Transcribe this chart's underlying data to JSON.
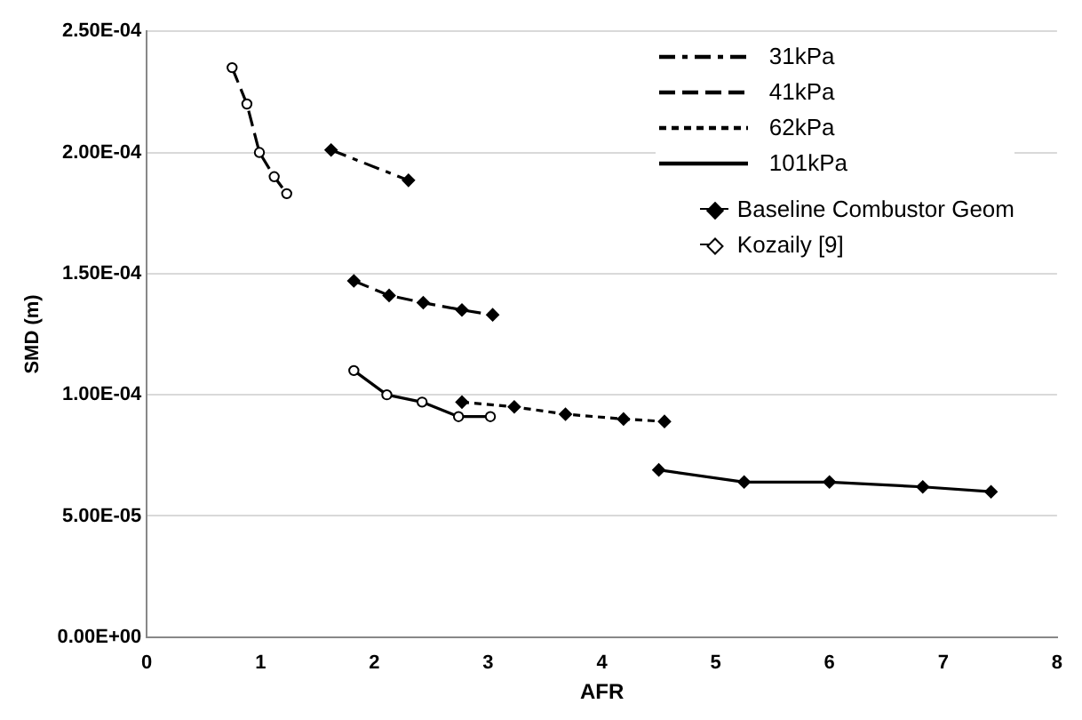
{
  "chart_data": {
    "type": "line",
    "xlabel": "AFR",
    "ylabel": "SMD (m)",
    "xlim": [
      0,
      8
    ],
    "xticks": [
      0,
      1,
      2,
      3,
      4,
      5,
      6,
      7,
      8
    ],
    "ylim": [
      0,
      0.00025
    ],
    "yticks": [
      {
        "value": 0,
        "label": "0.00E+00"
      },
      {
        "value": 5e-05,
        "label": "5.00E-05"
      },
      {
        "value": 0.0001,
        "label": "1.00E-04"
      },
      {
        "value": 0.00015,
        "label": "1.50E-04"
      },
      {
        "value": 0.0002,
        "label": "2.00E-04"
      },
      {
        "value": 0.00025,
        "label": "2.50E-04"
      }
    ],
    "grid": "y",
    "legend": "top right",
    "series": [
      {
        "name": "31kPa",
        "color": "#000000",
        "line_style": "dashdot",
        "marker": "diamond",
        "x": [
          1.62,
          2.3
        ],
        "values": [
          0.000201,
          0.0001885
        ]
      },
      {
        "name": "41kPa",
        "color": "#000000",
        "line_style": "dashed",
        "marker": "diamond",
        "x": [
          1.82,
          2.13,
          2.43,
          2.77,
          3.04
        ],
        "values": [
          0.000147,
          0.000141,
          0.000138,
          0.000135,
          0.000133
        ]
      },
      {
        "name": "62kPa",
        "color": "#000000",
        "line_style": "dotted",
        "marker": "diamond",
        "x": [
          2.77,
          3.23,
          3.68,
          4.19,
          4.55
        ],
        "values": [
          9.7e-05,
          9.5e-05,
          9.2e-05,
          9e-05,
          8.9e-05
        ]
      },
      {
        "name": "101kPa",
        "color": "#000000",
        "line_style": "solid",
        "marker": "diamond",
        "x": [
          4.5,
          5.25,
          6.0,
          6.82,
          7.42
        ],
        "values": [
          6.9e-05,
          6.4e-05,
          6.4e-05,
          6.2e-05,
          6e-05
        ]
      },
      {
        "color": "#000000",
        "line_style": "dashed",
        "marker": "circle",
        "x": [
          0.75,
          0.88,
          0.99,
          1.12,
          1.23
        ],
        "values": [
          0.000235,
          0.00022,
          0.0002,
          0.00019,
          0.000183
        ]
      },
      {
        "color": "#000000",
        "line_style": "solid",
        "marker": "circle",
        "x": [
          1.82,
          2.11,
          2.42,
          2.74,
          3.02
        ],
        "values": [
          0.00011,
          0.0001,
          9.7e-05,
          9.1e-05,
          9.1e-05
        ]
      }
    ],
    "annotations": [
      "Baseline Combustor Geom",
      "Kozaily [9]"
    ]
  }
}
